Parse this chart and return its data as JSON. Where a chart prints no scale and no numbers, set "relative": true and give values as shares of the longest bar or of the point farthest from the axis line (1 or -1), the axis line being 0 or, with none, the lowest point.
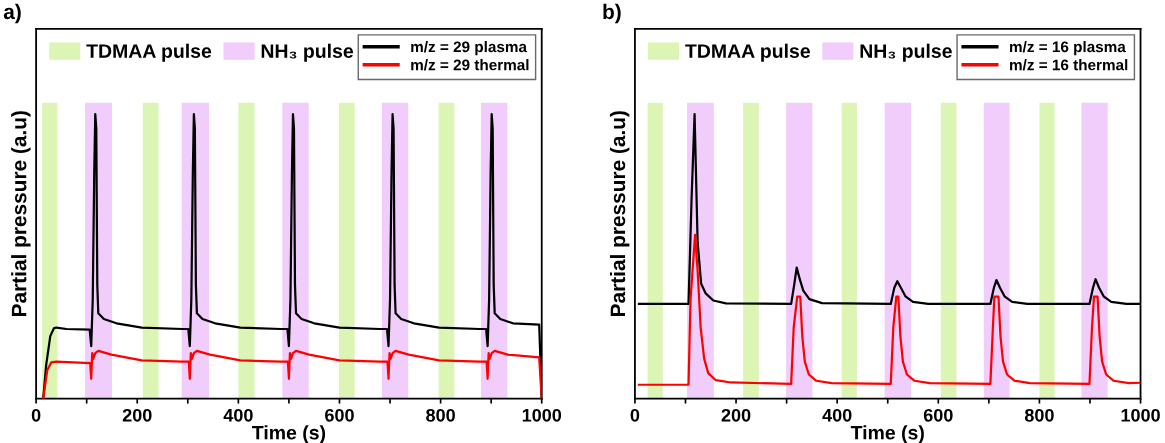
{
  "chart_data": [
    {
      "type": "line",
      "title": "a)",
      "xlabel": "Time (s)",
      "ylabel": "Partial pressure (a.u)",
      "relative": true,
      "tick_labels": "x",
      "legend": "top right",
      "grid": false,
      "xlim": [
        0,
        1000
      ],
      "xticks": [
        0,
        {
          "value": 100,
          "label": null
        },
        200,
        {
          "value": 300,
          "label": null
        },
        400,
        {
          "value": 500,
          "label": null
        },
        600,
        {
          "value": 700,
          "label": null
        },
        800,
        {
          "value": 900,
          "label": null
        },
        1000
      ],
      "bands": [
        {
          "axis": "x",
          "from": 12,
          "to": 42,
          "label": "TDMAA pulse",
          "color": "#dcf5b4"
        },
        {
          "axis": "x",
          "from": 97,
          "to": 150,
          "label": "NH₃ pulse",
          "color": "#f0cdfa"
        },
        {
          "axis": "x",
          "from": 211,
          "to": 242,
          "color": "#dcf5b4"
        },
        {
          "axis": "x",
          "from": 288,
          "to": 342,
          "color": "#f0cdfa"
        },
        {
          "axis": "x",
          "from": 400,
          "to": 432,
          "color": "#dcf5b4"
        },
        {
          "axis": "x",
          "from": 487,
          "to": 539,
          "color": "#f0cdfa"
        },
        {
          "axis": "x",
          "from": 599,
          "to": 630,
          "color": "#dcf5b4"
        },
        {
          "axis": "x",
          "from": 684,
          "to": 736,
          "color": "#f0cdfa"
        },
        {
          "axis": "x",
          "from": 796,
          "to": 827,
          "color": "#dcf5b4"
        },
        {
          "axis": "x",
          "from": 880,
          "to": 932,
          "color": "#f0cdfa"
        }
      ],
      "series": [
        {
          "name": "m/z = 29 plasma",
          "color": "#000000",
          "x": [
            14,
            20,
            28,
            35,
            40,
            60,
            106,
            109,
            112,
            115,
            117,
            119,
            121,
            123,
            134,
            159,
            209,
            289,
            301,
            304,
            307,
            310,
            312,
            314,
            316,
            318,
            329,
            354,
            404,
            484,
            497,
            500,
            503,
            506,
            508,
            510,
            512,
            514,
            525,
            550,
            600,
            680,
            694,
            697,
            700,
            703,
            705,
            707,
            709,
            711,
            722,
            747,
            797,
            877,
            890,
            893,
            896,
            899,
            901,
            903,
            905,
            907,
            918,
            943,
            995,
            1000
          ],
          "values": [
            0,
            0.12,
            0.22,
            0.247,
            0.25,
            0.245,
            0.243,
            0.185,
            0.35,
            0.8,
            1.0,
            0.95,
            0.4,
            0.3,
            0.28,
            0.265,
            0.25,
            0.245,
            0.245,
            0.185,
            0.35,
            0.8,
            1.0,
            0.95,
            0.4,
            0.3,
            0.28,
            0.265,
            0.25,
            0.245,
            0.245,
            0.185,
            0.35,
            0.8,
            1.0,
            0.95,
            0.4,
            0.3,
            0.28,
            0.265,
            0.25,
            0.245,
            0.245,
            0.185,
            0.35,
            0.8,
            1.0,
            0.95,
            0.4,
            0.3,
            0.28,
            0.265,
            0.25,
            0.245,
            0.245,
            0.185,
            0.35,
            0.8,
            1.0,
            0.95,
            0.4,
            0.3,
            0.28,
            0.265,
            0.26,
            0
          ]
        },
        {
          "name": "m/z = 29 thermal",
          "color": "#ff0000",
          "x": [
            14,
            22,
            30,
            40,
            107,
            109,
            111,
            113,
            117,
            123,
            149,
            209,
            289,
            302,
            304,
            306,
            308,
            312,
            318,
            344,
            404,
            484,
            498,
            500,
            502,
            504,
            508,
            514,
            540,
            600,
            680,
            695,
            697,
            699,
            701,
            705,
            711,
            737,
            797,
            877,
            891,
            893,
            895,
            897,
            901,
            907,
            933,
            995,
            1000
          ],
          "values": [
            0,
            0.1,
            0.128,
            0.13,
            0.125,
            0.07,
            0.16,
            0.14,
            0.16,
            0.168,
            0.155,
            0.135,
            0.13,
            0.13,
            0.07,
            0.16,
            0.14,
            0.16,
            0.168,
            0.155,
            0.135,
            0.13,
            0.13,
            0.07,
            0.16,
            0.14,
            0.16,
            0.168,
            0.155,
            0.135,
            0.13,
            0.13,
            0.07,
            0.16,
            0.14,
            0.16,
            0.168,
            0.155,
            0.135,
            0.13,
            0.13,
            0.07,
            0.16,
            0.14,
            0.16,
            0.168,
            0.155,
            0.145,
            0
          ]
        }
      ]
    },
    {
      "type": "line",
      "title": "b)",
      "xlabel": "Time (s)",
      "ylabel": "Partial pressure (a.u)",
      "relative": true,
      "tick_labels": "x",
      "legend": "top right",
      "grid": false,
      "xlim": [
        0,
        1000
      ],
      "xticks": [
        0,
        {
          "value": 100,
          "label": null
        },
        200,
        {
          "value": 300,
          "label": null
        },
        400,
        {
          "value": 500,
          "label": null
        },
        600,
        {
          "value": 700,
          "label": null
        },
        800,
        {
          "value": 900,
          "label": null
        },
        1000
      ],
      "bands": [
        {
          "axis": "x",
          "from": 25,
          "to": 55,
          "label": "TDMAA pulse",
          "color": "#dcf5b4"
        },
        {
          "axis": "x",
          "from": 103,
          "to": 156,
          "label": "NH₃ pulse",
          "color": "#f0cdfa"
        },
        {
          "axis": "x",
          "from": 214,
          "to": 245,
          "color": "#dcf5b4"
        },
        {
          "axis": "x",
          "from": 299,
          "to": 351,
          "color": "#f0cdfa"
        },
        {
          "axis": "x",
          "from": 409,
          "to": 439,
          "color": "#dcf5b4"
        },
        {
          "axis": "x",
          "from": 494,
          "to": 546,
          "color": "#f0cdfa"
        },
        {
          "axis": "x",
          "from": 605,
          "to": 636,
          "color": "#dcf5b4"
        },
        {
          "axis": "x",
          "from": 690,
          "to": 741,
          "color": "#f0cdfa"
        },
        {
          "axis": "x",
          "from": 800,
          "to": 830,
          "color": "#dcf5b4"
        },
        {
          "axis": "x",
          "from": 883,
          "to": 935,
          "color": "#f0cdfa"
        }
      ],
      "series": [
        {
          "name": "m/z = 16 plasma",
          "color": "#000000",
          "x": [
            8,
            106,
            112,
            118,
            124,
            131,
            140,
            155,
            180,
            309,
            315,
            320,
            326,
            333,
            345,
            370,
            506,
            513,
            519,
            526,
            535,
            550,
            580,
            703,
            710,
            715,
            722,
            731,
            746,
            776,
            899,
            906,
            911,
            918,
            927,
            942,
            972,
            1000
          ],
          "values": [
            0.333,
            0.333,
            0.7,
            1.0,
            0.55,
            0.404,
            0.37,
            0.345,
            0.335,
            0.333,
            0.4,
            0.461,
            0.42,
            0.38,
            0.35,
            0.336,
            0.333,
            0.39,
            0.413,
            0.39,
            0.36,
            0.34,
            0.333,
            0.333,
            0.39,
            0.417,
            0.39,
            0.36,
            0.34,
            0.333,
            0.333,
            0.39,
            0.42,
            0.39,
            0.36,
            0.34,
            0.333,
            0.333
          ]
        },
        {
          "name": "m/z = 16 thermal",
          "color": "#ff0000",
          "x": [
            8,
            106,
            110,
            119,
            124,
            130,
            137,
            145,
            160,
            190,
            309,
            314,
            321,
            327,
            331,
            336,
            344,
            359,
            389,
            506,
            511,
            517,
            521,
            525,
            530,
            538,
            553,
            583,
            703,
            708,
            711,
            719,
            723,
            728,
            736,
            751,
            781,
            899,
            904,
            908,
            915,
            919,
            924,
            932,
            947,
            977,
            1000
          ],
          "values": [
            0.049,
            0.049,
            0.35,
            0.576,
            0.45,
            0.25,
            0.14,
            0.09,
            0.065,
            0.057,
            0.052,
            0.25,
            0.359,
            0.359,
            0.22,
            0.13,
            0.085,
            0.063,
            0.055,
            0.052,
            0.25,
            0.359,
            0.359,
            0.22,
            0.13,
            0.085,
            0.063,
            0.055,
            0.052,
            0.25,
            0.359,
            0.359,
            0.22,
            0.13,
            0.085,
            0.063,
            0.055,
            0.052,
            0.25,
            0.359,
            0.359,
            0.22,
            0.13,
            0.085,
            0.063,
            0.055,
            0.056
          ]
        }
      ]
    }
  ]
}
